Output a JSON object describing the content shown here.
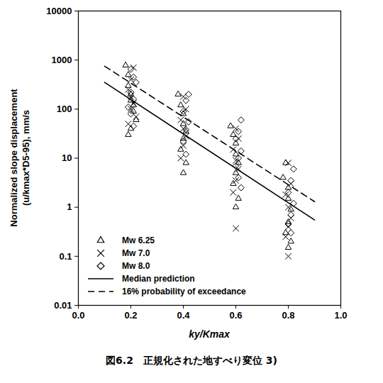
{
  "chart_data": {
    "type": "scatter",
    "caption": "図6.2　正規化された地すべり変位 3)",
    "x_label": "ky/Kmax",
    "y_label": "Normalized slope displacement\n(u/kmax*D5-95), mm/s",
    "log": "y",
    "grid": false,
    "legend": "lower left",
    "xlim": [
      0,
      1
    ],
    "xticks": [
      {
        "value": 0,
        "label": "0.0"
      },
      {
        "value": 0.2,
        "label": "0.2"
      },
      {
        "value": 0.4,
        "label": "0.4"
      },
      {
        "value": 0.6,
        "label": "0.6"
      },
      {
        "value": 0.8,
        "label": "0.8"
      },
      {
        "value": 1,
        "label": "1.0"
      }
    ],
    "ylim": [
      0.01,
      10000
    ],
    "yticks": [
      0.01,
      0.1,
      1,
      10,
      100,
      1000,
      10000
    ],
    "series": [
      {
        "name": "Mw 6.25",
        "type": "scatter",
        "marker": "triangle",
        "color": "#000000",
        "x": [
          0.18,
          0.19,
          0.19,
          0.2,
          0.2,
          0.21,
          0.21,
          0.22,
          0.2,
          0.19,
          0.38,
          0.39,
          0.4,
          0.4,
          0.41,
          0.4,
          0.39,
          0.41,
          0.4,
          0.58,
          0.59,
          0.6,
          0.6,
          0.61,
          0.6,
          0.59,
          0.61,
          0.6,
          0.79,
          0.78,
          0.8,
          0.8,
          0.81,
          0.8,
          0.79,
          0.81,
          0.8
        ],
        "values": [
          780,
          500,
          300,
          200,
          150,
          120,
          90,
          60,
          40,
          30,
          200,
          120,
          80,
          50,
          35,
          25,
          15,
          8,
          5,
          45,
          30,
          20,
          12,
          8,
          5,
          3,
          1.5,
          1,
          8,
          4,
          2.5,
          1.5,
          0.9,
          0.5,
          0.3,
          0.2,
          0.15
        ]
      },
      {
        "name": "Mw 7.0",
        "type": "scatter",
        "marker": "x",
        "color": "#000000",
        "x": [
          0.21,
          0.2,
          0.19,
          0.2,
          0.21,
          0.2,
          0.22,
          0.19,
          0.4,
          0.41,
          0.39,
          0.4,
          0.41,
          0.4,
          0.39,
          0.6,
          0.61,
          0.59,
          0.6,
          0.61,
          0.6,
          0.59,
          0.6,
          0.8,
          0.81,
          0.79,
          0.8,
          0.81,
          0.8,
          0.79,
          0.8
        ],
        "values": [
          700,
          400,
          250,
          180,
          130,
          100,
          70,
          50,
          180,
          100,
          60,
          40,
          28,
          18,
          10,
          40,
          25,
          15,
          9,
          6,
          3.5,
          2,
          0.37,
          8,
          3,
          1.8,
          1,
          0.6,
          0.4,
          0.25,
          0.1
        ]
      },
      {
        "name": "Mw 8.0",
        "type": "scatter",
        "marker": "diamond",
        "color": "#000000",
        "x": [
          0.2,
          0.21,
          0.22,
          0.2,
          0.21,
          0.19,
          0.2,
          0.21,
          0.42,
          0.41,
          0.4,
          0.42,
          0.41,
          0.4,
          0.41,
          0.62,
          0.61,
          0.6,
          0.62,
          0.61,
          0.6,
          0.61,
          0.62,
          0.82,
          0.81,
          0.8,
          0.82,
          0.81,
          0.8,
          0.81
        ],
        "values": [
          650,
          450,
          350,
          220,
          160,
          110,
          80,
          45,
          200,
          150,
          90,
          55,
          38,
          22,
          12,
          60,
          35,
          25,
          14,
          10,
          7,
          4,
          2.5,
          6,
          3.5,
          2,
          1.2,
          0.7,
          0.45,
          0.3
        ]
      },
      {
        "name": "Median prediction",
        "type": "line",
        "line_style": "solid",
        "color": "#000000",
        "x": [
          0.1,
          0.9
        ],
        "values": [
          350,
          0.55
        ]
      },
      {
        "name": "16% probability of exceedance",
        "type": "line",
        "line_style": "dashed",
        "color": "#000000",
        "x": [
          0.1,
          0.9
        ],
        "values": [
          750,
          1.3
        ]
      }
    ]
  }
}
